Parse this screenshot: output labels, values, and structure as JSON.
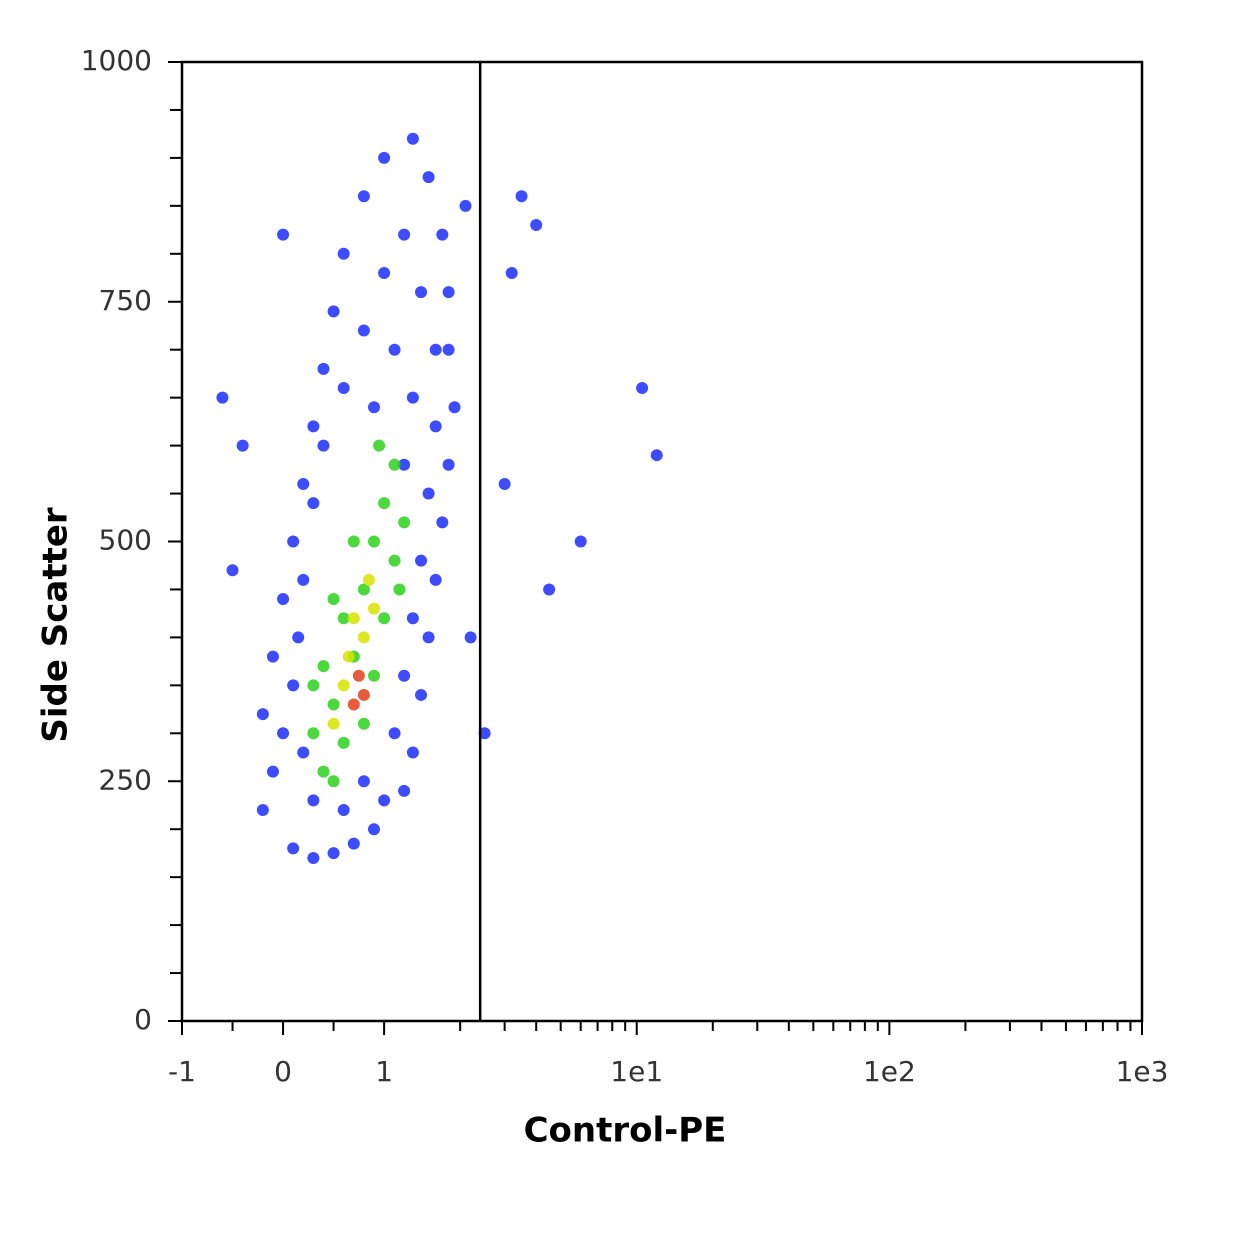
{
  "chart_data": {
    "type": "scatter",
    "xlabel": "Control-PE",
    "ylabel": "Side Scatter",
    "xscale": "biexponential",
    "xlim": [
      -1,
      1000
    ],
    "ylim": [
      0,
      1000
    ],
    "xticks": [
      -1,
      0,
      1,
      {
        "value": 10,
        "label": "1e1"
      },
      {
        "value": 100,
        "label": "1e2"
      },
      {
        "value": 1000,
        "label": "1e3"
      }
    ],
    "xminorticks": [
      -0.5,
      0.5,
      2,
      3,
      4,
      5,
      6,
      7,
      8,
      9,
      20,
      30,
      40,
      50,
      60,
      70,
      80,
      90,
      200,
      300,
      400,
      500,
      600,
      700,
      800,
      900
    ],
    "yticks": [
      0,
      250,
      500,
      750,
      1000
    ],
    "yminorticks": [
      50,
      100,
      150,
      200,
      300,
      350,
      400,
      450,
      550,
      600,
      650,
      700,
      800,
      850,
      900,
      950
    ],
    "gate_x": 2.4,
    "series": [
      {
        "color": "#1c2dff",
        "x": [
          0.1,
          0.3,
          0.5,
          0.7,
          0.9,
          1.0,
          -0.2,
          -0.1,
          -0.2,
          -0.1,
          0.0,
          0.1,
          0.2,
          0.3,
          0.4,
          0.5,
          0.6,
          0.8,
          1.0,
          1.3,
          1.5,
          1.7,
          1.8,
          1.8,
          1.9,
          1.8,
          1.7,
          1.6,
          1.5,
          1.4,
          1.3,
          1.2,
          0.0,
          0.1,
          0.2,
          0.3,
          0.6,
          0.8,
          1.1,
          1.2,
          1.3,
          1.4,
          1.5,
          1.6,
          1.6,
          1.4,
          1.2,
          1.0,
          0.8,
          0.6,
          0.4,
          0.3,
          0.2,
          0.15,
          1.3,
          1.1,
          0.9,
          1.2,
          -0.5,
          -0.6,
          2.2,
          3.0,
          3.5,
          4.5,
          6,
          10.5,
          12,
          0.0,
          -0.4,
          2.1,
          2.5,
          4,
          3.2
        ],
        "y": [
          180,
          170,
          175,
          185,
          200,
          230,
          220,
          260,
          320,
          380,
          440,
          500,
          560,
          620,
          680,
          740,
          800,
          860,
          900,
          920,
          880,
          820,
          760,
          700,
          640,
          580,
          520,
          460,
          400,
          340,
          280,
          240,
          300,
          350,
          280,
          230,
          220,
          250,
          300,
          360,
          420,
          480,
          550,
          620,
          700,
          760,
          820,
          780,
          720,
          660,
          600,
          540,
          460,
          400,
          650,
          700,
          640,
          580,
          470,
          650,
          400,
          560,
          860,
          450,
          500,
          660,
          590,
          820,
          600,
          850,
          300,
          830,
          780
        ]
      },
      {
        "color": "#2bd21c",
        "x": [
          0.3,
          0.4,
          0.5,
          0.6,
          0.7,
          0.6,
          0.8,
          0.9,
          1.0,
          1.1,
          1.0,
          0.9,
          0.8,
          0.4,
          0.5,
          0.7,
          1.1,
          1.2,
          0.95,
          0.5,
          0.3,
          1.15
        ],
        "y": [
          300,
          260,
          330,
          290,
          380,
          420,
          450,
          500,
          540,
          480,
          420,
          360,
          310,
          370,
          440,
          500,
          580,
          520,
          600,
          250,
          350,
          450
        ]
      },
      {
        "color": "#d6e400",
        "x": [
          0.6,
          0.7,
          0.8,
          0.85,
          0.5,
          0.9,
          0.65
        ],
        "y": [
          350,
          420,
          400,
          460,
          310,
          430,
          380
        ]
      },
      {
        "color": "#e2401a",
        "x": [
          0.75,
          0.8,
          0.7
        ],
        "y": [
          360,
          340,
          330
        ]
      }
    ]
  }
}
